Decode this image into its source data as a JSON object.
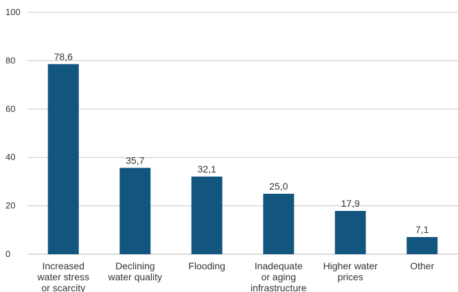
{
  "chart_data": {
    "type": "bar",
    "categories": [
      [
        "Increased",
        "water stress",
        "or scarcity"
      ],
      [
        "Declining",
        "water quality"
      ],
      [
        "Flooding"
      ],
      [
        "Inadequate",
        "or aging",
        "infrastructure"
      ],
      [
        "Higher water",
        "prices"
      ],
      [
        "Other"
      ]
    ],
    "values": [
      78.6,
      35.7,
      32.1,
      25.0,
      17.9,
      7.1
    ],
    "value_labels": [
      "78,6",
      "35,7",
      "32,1",
      "25,0",
      "17,9",
      "7,1"
    ],
    "title": "",
    "xlabel": "",
    "ylabel": "",
    "ylim": [
      0,
      100
    ],
    "yticks": [
      0,
      20,
      40,
      60,
      80,
      100
    ],
    "grid": true,
    "legend": "none",
    "bar_color": "#12557f"
  }
}
